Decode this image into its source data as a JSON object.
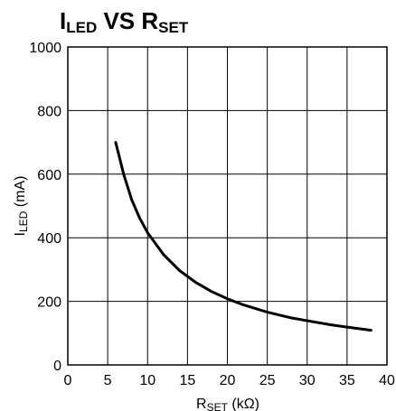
{
  "chart_data": {
    "type": "line",
    "title": {
      "main1": "I",
      "sub1": "LED",
      "mid": " VS R",
      "sub2": "SET"
    },
    "xlabel": {
      "main": "R",
      "sub": "SET",
      "rest": " (kΩ)"
    },
    "ylabel": {
      "main": "I",
      "sub": "LED",
      "rest": " (mA)"
    },
    "xlim": [
      0,
      40
    ],
    "ylim": [
      0,
      1000
    ],
    "x_ticks": [
      0,
      5,
      10,
      15,
      20,
      25,
      30,
      35,
      40
    ],
    "y_ticks": [
      0,
      200,
      400,
      600,
      800,
      1000
    ],
    "grid": true,
    "series": [
      {
        "x": [
          6,
          7,
          8,
          9,
          10,
          12,
          14,
          16,
          18,
          20,
          22,
          25,
          28,
          30,
          33,
          35,
          38
        ],
        "y": [
          700,
          600,
          520,
          462,
          416,
          347,
          297,
          260,
          231,
          208,
          189,
          166,
          148,
          139,
          126,
          119,
          109
        ]
      }
    ],
    "colors": {
      "line": "#000000",
      "grid": "#000000"
    }
  }
}
